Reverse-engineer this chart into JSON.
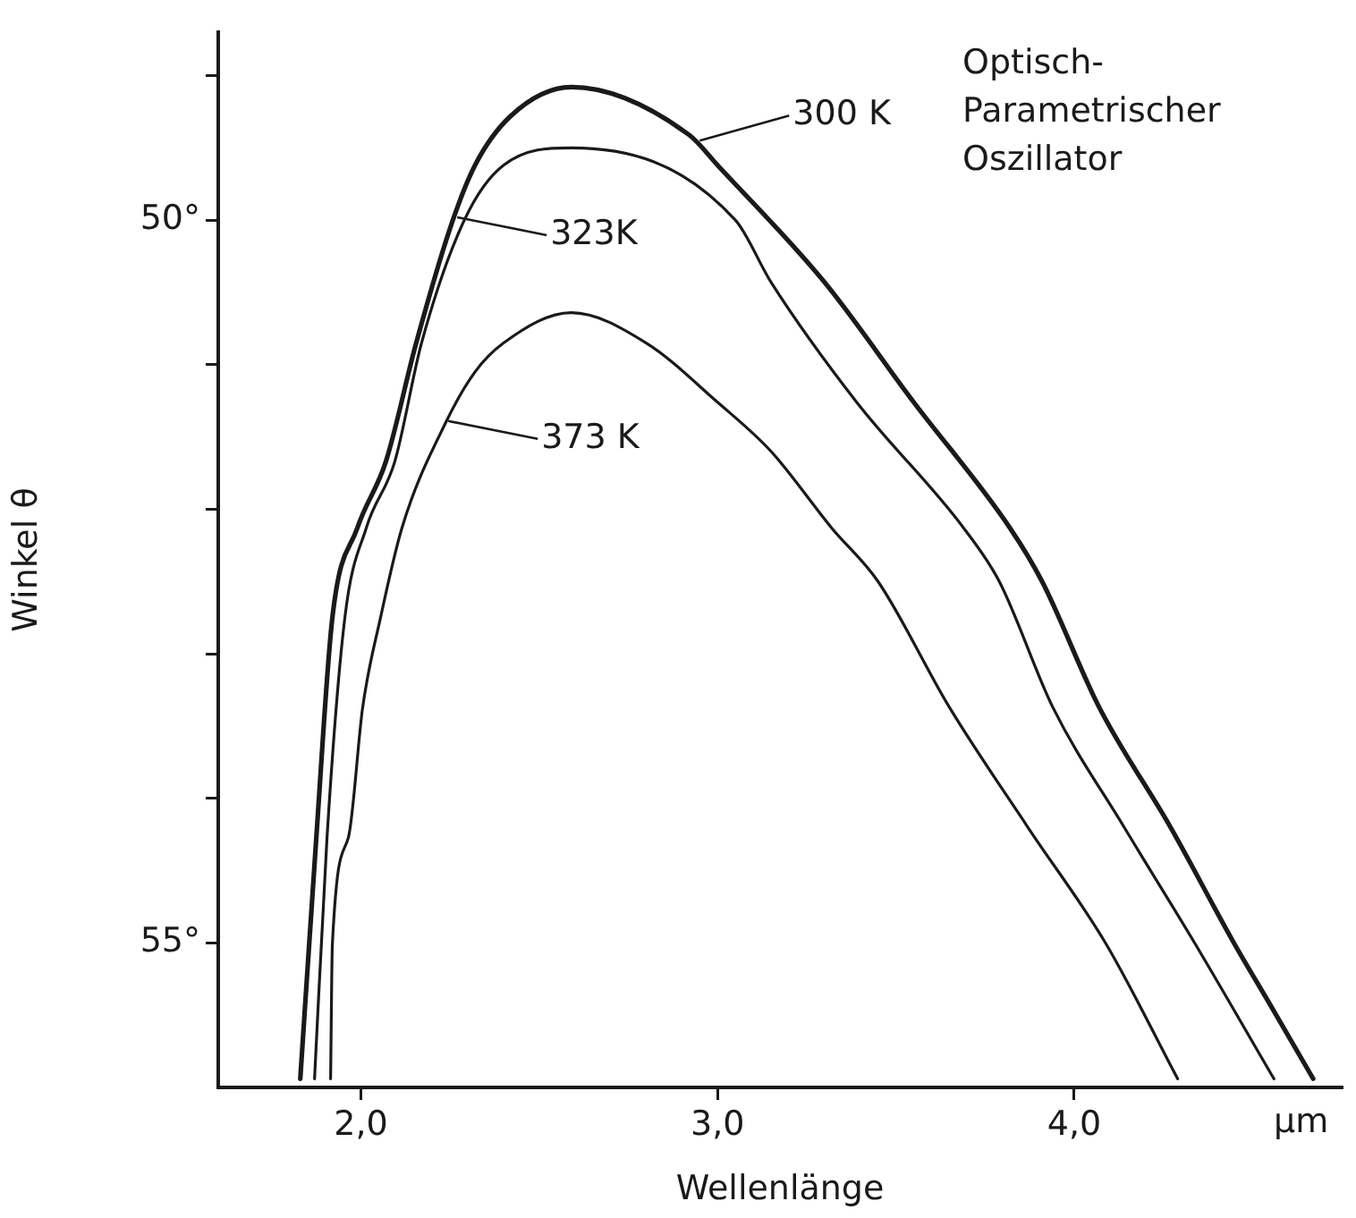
{
  "chart_data": {
    "type": "line",
    "xlabel": "Wellenlänge",
    "ylabel": "Winkel θ",
    "xlim": [
      1.6,
      4.75
    ],
    "xticks": [
      {
        "value": 2,
        "label": "2,0"
      },
      {
        "value": 3,
        "label": "3,0"
      },
      {
        "value": 4,
        "label": "4,0"
      }
    ],
    "ylim": [
      56,
      48.7
    ],
    "yticks": [
      {
        "value": 49,
        "label": null
      },
      {
        "value": 50,
        "label": "50°"
      },
      {
        "value": 51,
        "label": null
      },
      {
        "value": 52,
        "label": null
      },
      {
        "value": 53,
        "label": null
      },
      {
        "value": 54,
        "label": null
      },
      {
        "value": 55,
        "label": "55°"
      }
    ],
    "grid": false,
    "legend": false,
    "marker": "none",
    "line_style": "solid",
    "series": [
      {
        "color": "#1a1a1a",
        "x": [
          1.83,
          1.875,
          1.92,
          1.99,
          2.07,
          2.155,
          2.255,
          2.32,
          2.42,
          2.59,
          2.92,
          3.0,
          3.3,
          3.55,
          3.82,
          3.91,
          4.07,
          4.27,
          4.45,
          4.55,
          4.67
        ],
        "values": [
          55.94,
          54.27,
          52.75,
          52.13,
          51.67,
          50.85,
          50.02,
          49.62,
          49.28,
          49.08,
          49.41,
          49.62,
          50.43,
          51.26,
          52.13,
          52.5,
          53.37,
          54.2,
          55.01,
          55.43,
          55.94
        ]
      },
      {
        "color": "#1a1a1a",
        "x": [
          1.87,
          1.905,
          1.955,
          2.015,
          2.095,
          2.17,
          2.29,
          2.4,
          2.59,
          3.05,
          3.15,
          3.39,
          3.69,
          3.79,
          3.94,
          4.14,
          4.34,
          4.56
        ],
        "values": [
          55.94,
          54.27,
          52.75,
          52.13,
          51.67,
          50.85,
          50.0,
          49.62,
          49.5,
          50.0,
          50.43,
          51.26,
          52.13,
          52.5,
          53.37,
          54.2,
          55.01,
          55.94
        ]
      },
      {
        "color": "#1a1a1a",
        "x": [
          1.915,
          1.92,
          1.965,
          2.005,
          2.055,
          2.115,
          2.24,
          2.32,
          2.4,
          2.59,
          2.8,
          3.0,
          3.15,
          3.32,
          3.45,
          3.65,
          3.87,
          4.09,
          4.29
        ],
        "values": [
          55.94,
          55.01,
          54.27,
          53.37,
          52.75,
          52.13,
          51.39,
          51.05,
          50.85,
          50.64,
          50.85,
          51.26,
          51.6,
          52.13,
          52.5,
          53.37,
          54.2,
          55.01,
          55.94
        ]
      }
    ],
    "annotations": [
      {
        "text": "300 K",
        "x": 2.95,
        "y": 49.45
      },
      {
        "text": "323K",
        "x": 2.27,
        "y": 49.98
      },
      {
        "text": "373 K",
        "x": 2.245,
        "y": 51.39
      },
      "Optisch-\nParametrischer\nOszillator",
      "µm"
    ]
  }
}
